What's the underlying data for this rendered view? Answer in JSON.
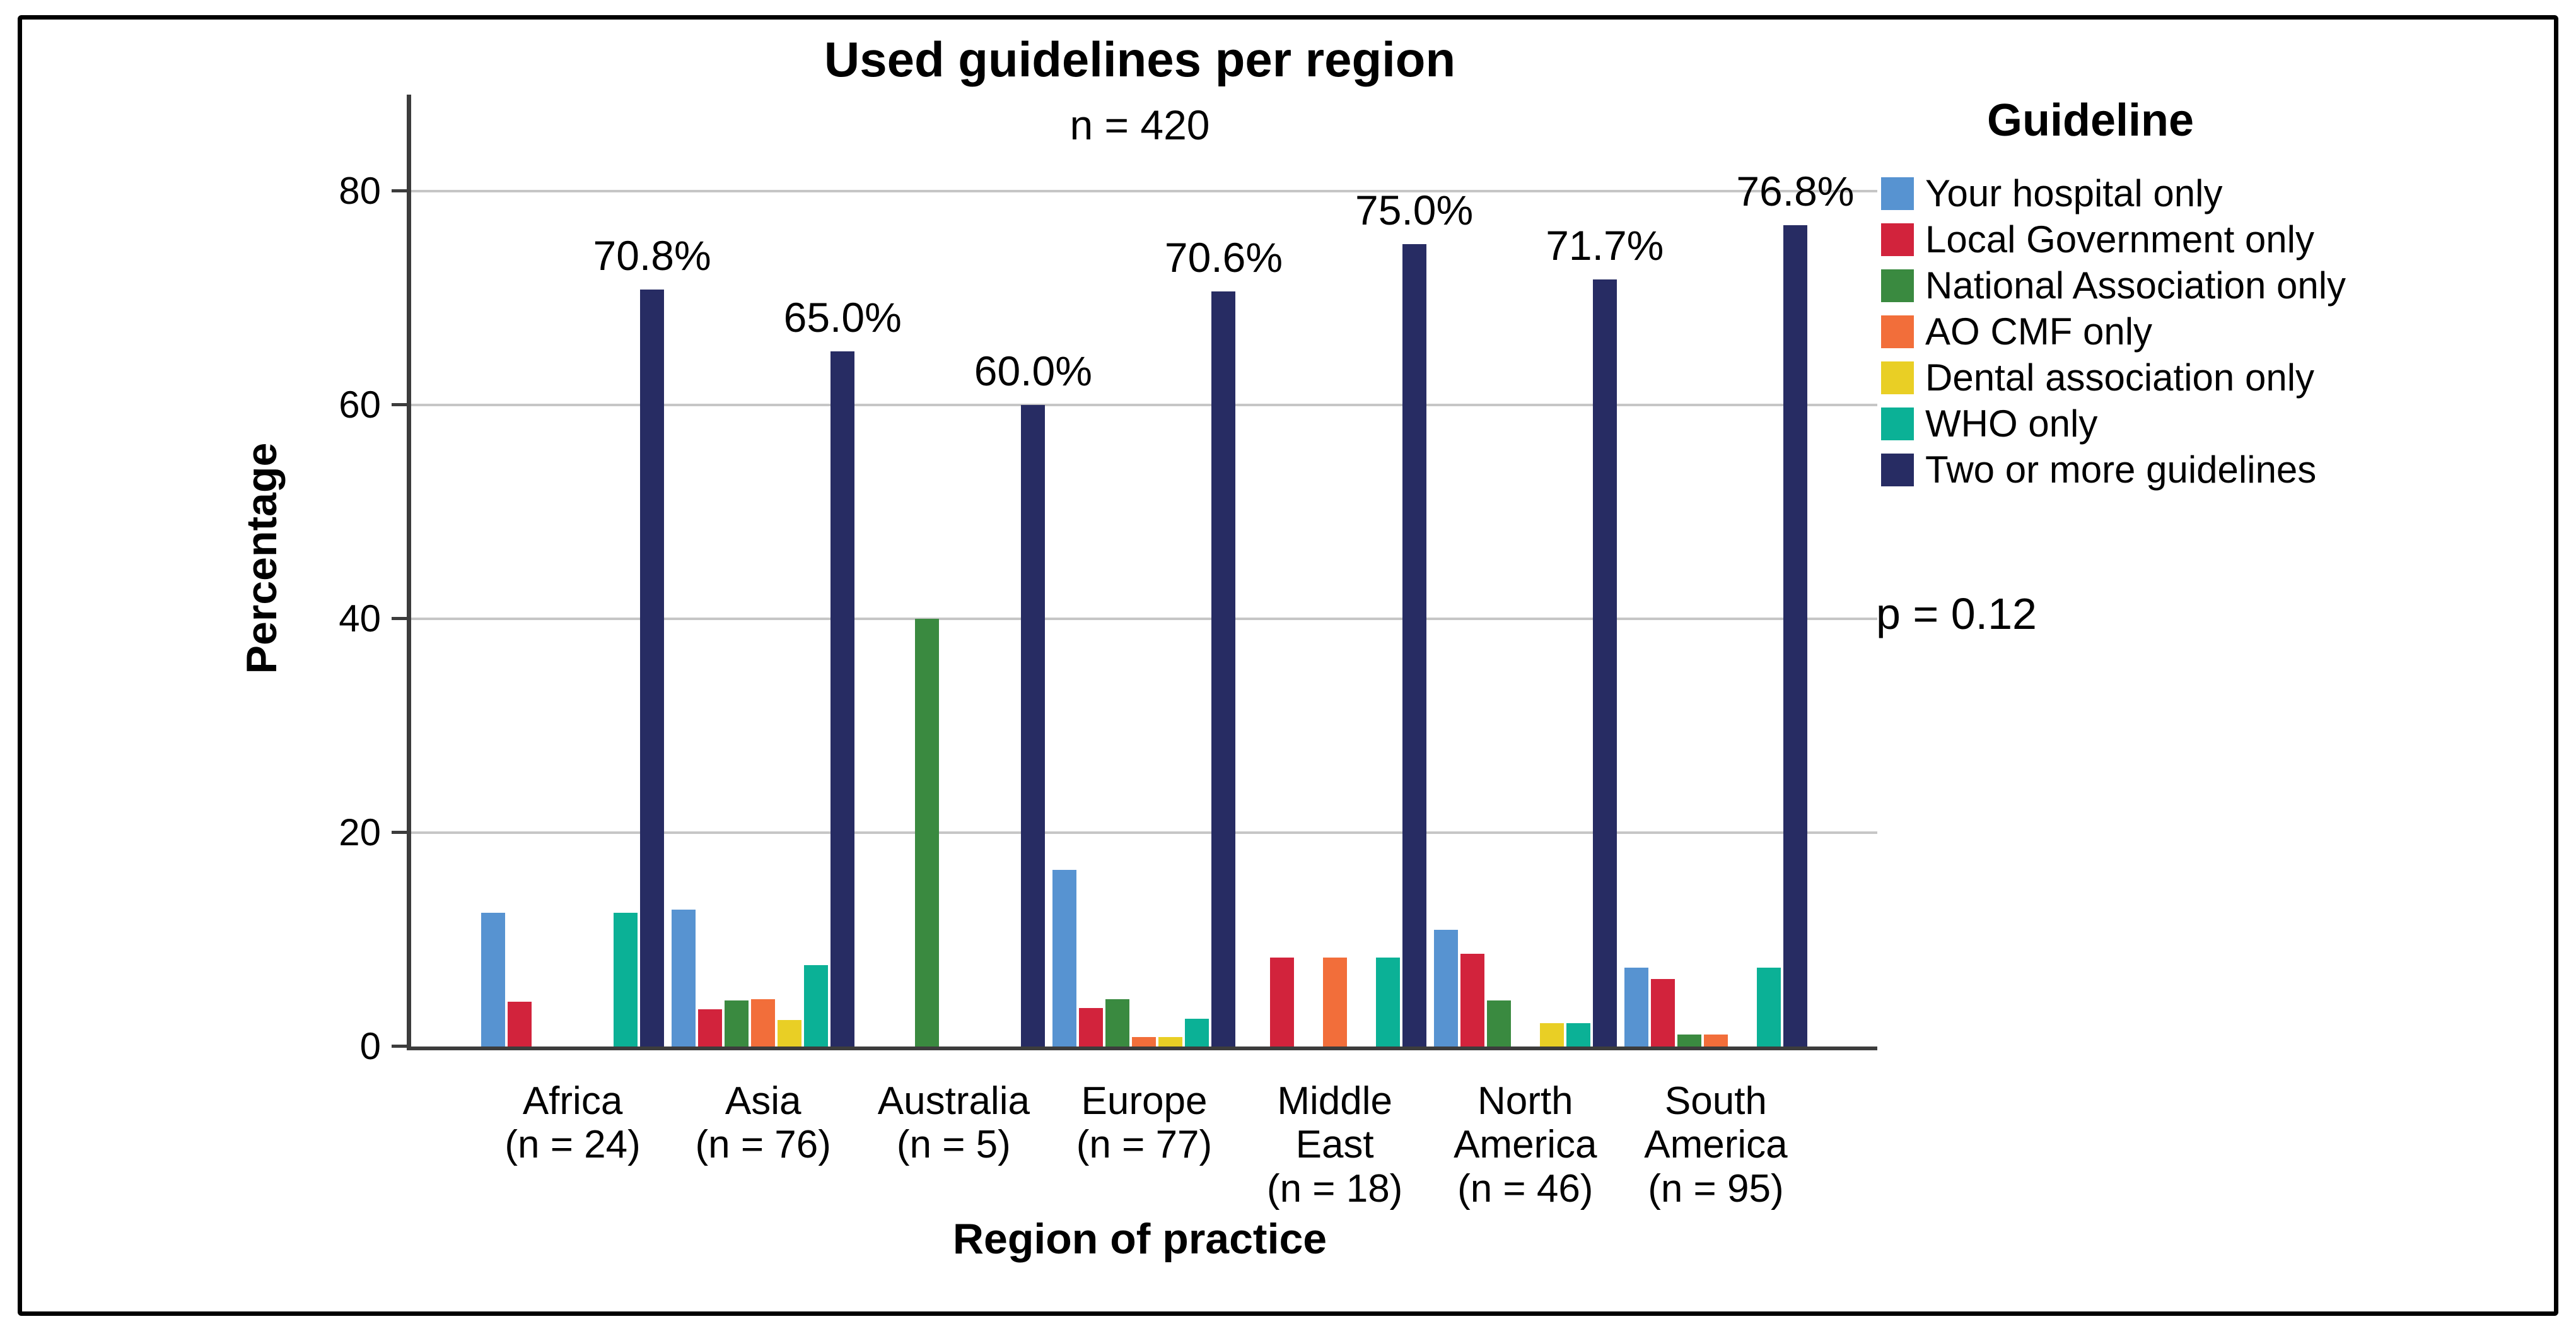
{
  "figure": {
    "title": "Used guidelines per region",
    "subtitle": "n = 420",
    "p_value_label": "p = 0.12",
    "colors": {
      "axis": "#3c3c3c",
      "gridline": "#c6c6c6",
      "frame_border": "#000000",
      "background": "#ffffff"
    }
  },
  "chart_data": {
    "type": "bar",
    "title": "Used guidelines per region",
    "subtitle": "n = 420",
    "xlabel": "Region of practice",
    "ylabel": "Percentage",
    "ylim": [
      0,
      89
    ],
    "yticks": [
      0,
      20,
      40,
      60,
      80
    ],
    "grid": "horizontal",
    "legend_title": "Guideline",
    "legend_position": "right",
    "annotation": "p = 0.12",
    "categories": [
      "Africa",
      "Asia",
      "Australia",
      "Europe",
      "Middle East",
      "North America",
      "South America"
    ],
    "category_sample_sizes": [
      "(n = 24)",
      "(n = 76)",
      "(n = 5)",
      "(n = 77)",
      "(n = 18)",
      "(n = 46)",
      "(n = 95)"
    ],
    "x_tick_lines": [
      [
        "Africa",
        "(n = 24)"
      ],
      [
        "Asia",
        "(n = 76)"
      ],
      [
        "Australia",
        "(n = 5)"
      ],
      [
        "Europe",
        "(n = 77)"
      ],
      [
        "Middle",
        "East",
        "(n = 18)"
      ],
      [
        "North",
        "America",
        "(n = 46)"
      ],
      [
        "South",
        "America",
        "(n = 95)"
      ]
    ],
    "series": [
      {
        "name": "Your hospital only",
        "color": "#5793d1",
        "values": [
          12.5,
          12.8,
          0,
          16.5,
          0,
          10.9,
          7.4
        ]
      },
      {
        "name": "Local Government only",
        "color": "#d2233c",
        "values": [
          4.2,
          3.5,
          0,
          3.6,
          8.3,
          8.7,
          6.3
        ]
      },
      {
        "name": "National Association only",
        "color": "#3a8a40",
        "values": [
          0,
          4.3,
          40.0,
          4.4,
          0,
          4.3,
          1.1
        ]
      },
      {
        "name": "AO CMF only",
        "color": "#f26e3a",
        "values": [
          0,
          4.4,
          0,
          0.9,
          8.3,
          0,
          1.1
        ]
      },
      {
        "name": "Dental association only",
        "color": "#e9cf25",
        "values": [
          0,
          2.5,
          0,
          0.9,
          0,
          2.2,
          0
        ]
      },
      {
        "name": "WHO only",
        "color": "#0bb196",
        "values": [
          12.5,
          7.6,
          0,
          2.6,
          8.3,
          2.2,
          7.4
        ]
      },
      {
        "name": "Two or more guidelines",
        "color": "#272c63",
        "values": [
          70.8,
          65.0,
          60.0,
          70.6,
          75.0,
          71.7,
          76.8
        ],
        "data_labels": [
          "70.8%",
          "65.0%",
          "60.0%",
          "70.6%",
          "75.0%",
          "71.7%",
          "76.8%"
        ]
      }
    ]
  }
}
